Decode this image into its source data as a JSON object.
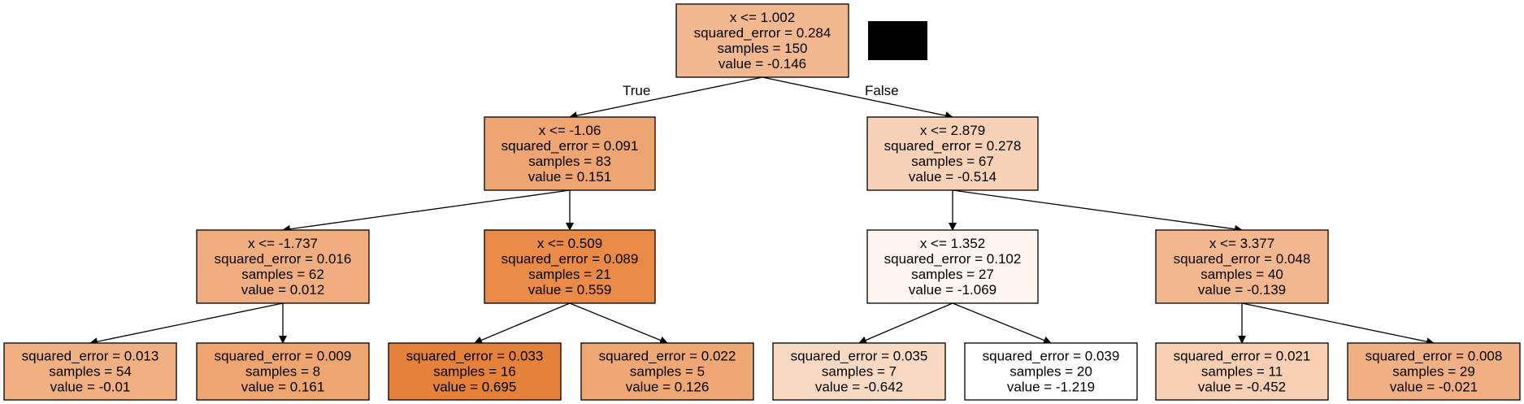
{
  "tree": {
    "nodes": [
      {
        "id": "n0",
        "lines": [
          "x <= 1.002",
          "squared_error = 0.284",
          "samples = 150",
          "value = -0.146"
        ],
        "fill": "#f2b890"
      },
      {
        "id": "n1",
        "lines": [
          "x <= -1.06",
          "squared_error = 0.091",
          "samples = 83",
          "value = 0.151"
        ],
        "fill": "#eea571"
      },
      {
        "id": "n2",
        "lines": [
          "x <= 2.879",
          "squared_error = 0.278",
          "samples = 67",
          "value = -0.514"
        ],
        "fill": "#f7d2b6"
      },
      {
        "id": "n3",
        "lines": [
          "x <= -1.737",
          "squared_error = 0.016",
          "samples = 62",
          "value = 0.012"
        ],
        "fill": "#f0ae80"
      },
      {
        "id": "n4",
        "lines": [
          "x <= 0.509",
          "squared_error = 0.089",
          "samples = 21",
          "value = 0.559"
        ],
        "fill": "#e98a47"
      },
      {
        "id": "n5",
        "lines": [
          "x <= 1.352",
          "squared_error = 0.102",
          "samples = 27",
          "value = -1.069"
        ],
        "fill": "#fef5ef"
      },
      {
        "id": "n6",
        "lines": [
          "x <= 3.377",
          "squared_error = 0.048",
          "samples = 40",
          "value = -0.139"
        ],
        "fill": "#f2b78e"
      },
      {
        "id": "n7",
        "lines": [
          "squared_error = 0.013",
          "samples = 54",
          "value = -0.01"
        ],
        "fill": "#f0b082"
      },
      {
        "id": "n8",
        "lines": [
          "squared_error = 0.009",
          "samples = 8",
          "value = 0.161"
        ],
        "fill": "#eea570"
      },
      {
        "id": "n9",
        "lines": [
          "squared_error = 0.033",
          "samples = 16",
          "value = 0.695"
        ],
        "fill": "#e58139"
      },
      {
        "id": "n10",
        "lines": [
          "squared_error = 0.022",
          "samples = 5",
          "value = 0.126"
        ],
        "fill": "#efa774"
      },
      {
        "id": "n11",
        "lines": [
          "squared_error = 0.035",
          "samples = 7",
          "value = -0.642"
        ],
        "fill": "#f8d9c2"
      },
      {
        "id": "n12",
        "lines": [
          "squared_error = 0.039",
          "samples = 20",
          "value = -1.219"
        ],
        "fill": "#ffffff"
      },
      {
        "id": "n13",
        "lines": [
          "squared_error = 0.021",
          "samples = 11",
          "value = -0.452"
        ],
        "fill": "#f7cfb2"
      },
      {
        "id": "n14",
        "lines": [
          "squared_error = 0.008",
          "samples = 29",
          "value = -0.021"
        ],
        "fill": "#f0b083"
      }
    ],
    "edges": [
      {
        "from": "n0",
        "to": "n1",
        "label": "True"
      },
      {
        "from": "n0",
        "to": "n2",
        "label": "False"
      },
      {
        "from": "n1",
        "to": "n3",
        "label": ""
      },
      {
        "from": "n1",
        "to": "n4",
        "label": ""
      },
      {
        "from": "n2",
        "to": "n5",
        "label": ""
      },
      {
        "from": "n2",
        "to": "n6",
        "label": ""
      },
      {
        "from": "n3",
        "to": "n7",
        "label": ""
      },
      {
        "from": "n3",
        "to": "n8",
        "label": ""
      },
      {
        "from": "n4",
        "to": "n9",
        "label": ""
      },
      {
        "from": "n4",
        "to": "n10",
        "label": ""
      },
      {
        "from": "n5",
        "to": "n11",
        "label": ""
      },
      {
        "from": "n5",
        "to": "n12",
        "label": ""
      },
      {
        "from": "n6",
        "to": "n13",
        "label": ""
      },
      {
        "from": "n6",
        "to": "n14",
        "label": ""
      }
    ],
    "legend_swatch_color": "#000000"
  }
}
